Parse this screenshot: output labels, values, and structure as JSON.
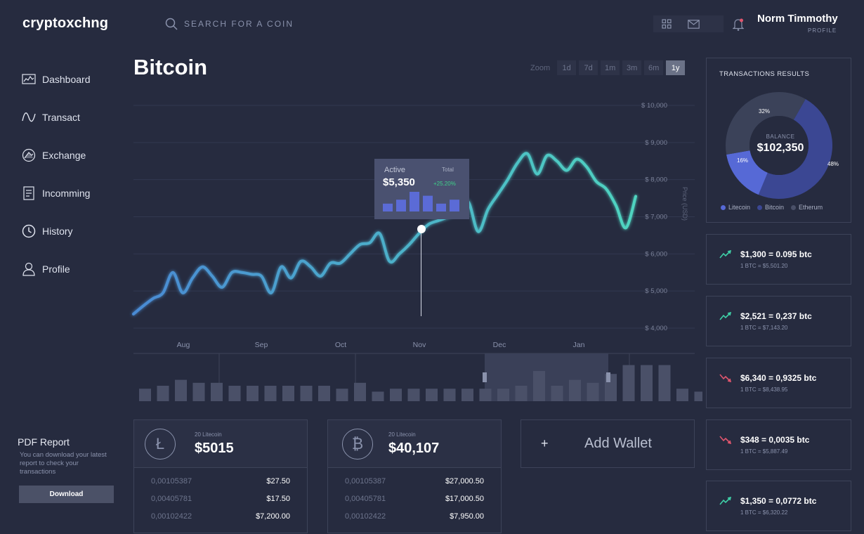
{
  "app": {
    "brand": "cryptoxchng"
  },
  "search": {
    "placeholder": "SEARCH FOR A COIN"
  },
  "header": {
    "icons": [
      "grid-icon",
      "mail-icon",
      "bell-icon"
    ],
    "user_name": "Norm Timmothy",
    "user_sub": "PROFILE"
  },
  "sidebar": {
    "items": [
      {
        "label": "Dashboard",
        "icon": "dashboard-icon"
      },
      {
        "label": "Transact",
        "icon": "wave-icon"
      },
      {
        "label": "Exchange",
        "icon": "exchange-icon"
      },
      {
        "label": "Incomming",
        "icon": "incoming-icon"
      },
      {
        "label": "History",
        "icon": "clock-icon"
      },
      {
        "label": "Profile",
        "icon": "user-icon"
      }
    ],
    "pdf": {
      "title": "PDF Report",
      "desc": "You can download your latest report to check your transactions",
      "button": "Download"
    }
  },
  "main": {
    "title": "Bitcoin",
    "zoom": {
      "label": "Zoom",
      "options": [
        "1d",
        "7d",
        "1m",
        "3m",
        "6m",
        "1y"
      ],
      "active": "1y"
    }
  },
  "colors": {
    "line_start": "#4a8ad4",
    "line_end": "#4fd4c0",
    "accent": "#5b6bd6",
    "up": "#3fd0a8",
    "down": "#e0566e"
  },
  "chart_data": {
    "type": "line",
    "ylabel": "Price (USD)",
    "ylim": [
      4000,
      10000
    ],
    "y_ticks": [
      "$ 4,000",
      "$ 5,000",
      "$ 6,000",
      "$ 7,000",
      "$ 8,000",
      "$ 9,000",
      "$ 10,000"
    ],
    "x_ticks": [
      "Aug",
      "Sep",
      "Oct",
      "Nov",
      "Dec",
      "Jan"
    ],
    "series": [
      {
        "values": [
          4380,
          4600,
          4800,
          4950,
          5500,
          4950,
          5350,
          5650,
          5400,
          5100,
          5500,
          5500,
          5450,
          5400,
          4950,
          5650,
          5350,
          5800,
          5650,
          5400,
          5750,
          5750,
          6000,
          6250,
          6300,
          6550,
          5800,
          6000,
          6250,
          6550,
          6800,
          6900,
          7000,
          7150,
          7400,
          6600,
          7200,
          7600,
          8000,
          8450,
          8700,
          8150,
          8650,
          8500,
          8250,
          8550,
          8350,
          7950,
          7750,
          7300,
          6700,
          7550
        ]
      }
    ],
    "tooltip": {
      "label": "Active",
      "total_label": "Total",
      "value": "$5,350",
      "change": "+25.20%",
      "bars": [
        2,
        3,
        5,
        4,
        2,
        3
      ]
    },
    "volume": [
      4,
      5,
      7,
      6,
      6,
      5,
      5,
      5,
      5,
      5,
      5,
      4,
      6,
      3,
      4,
      4,
      4,
      4,
      4,
      4,
      4,
      5,
      10,
      5,
      7,
      6,
      9,
      12,
      12,
      12,
      4,
      3,
      4,
      7
    ]
  },
  "wallets": [
    {
      "icon": "litecoin-icon",
      "glyph": "Ł",
      "sub": "20 Litecoin",
      "amount": "$5015",
      "rows": [
        [
          "0,00105387",
          "$27.50"
        ],
        [
          "0,00405781",
          "$17.50"
        ],
        [
          "0,00102422",
          "$7,200.00"
        ]
      ]
    },
    {
      "icon": "bitcoin-icon",
      "glyph": "₿",
      "sub": "20 Litecoin",
      "amount": "$40,107",
      "rows": [
        [
          "0,00105387",
          "$27,000.50"
        ],
        [
          "0,00405781",
          "$17,000.50"
        ],
        [
          "0,00102422",
          "$7,950.00"
        ]
      ]
    }
  ],
  "add_wallet": {
    "plus": "+",
    "label": "Add Wallet"
  },
  "transactions": {
    "title": "TRANSACTIONS RESULTS",
    "center_label": "BALANCE",
    "center_value": "$102,350",
    "slices": [
      {
        "name": "Bitcoin",
        "pct": 48,
        "label": "48%",
        "color": "#3b4793"
      },
      {
        "name": "Litecoin",
        "pct": 16,
        "label": "16%",
        "color": "#5669d6"
      },
      {
        "name": "Etherum",
        "pct": 32,
        "label": "32%",
        "color": "#3b4259"
      }
    ],
    "legend": [
      {
        "name": "Litecoin",
        "color": "#5669d6"
      },
      {
        "name": "Bitcoin",
        "color": "#3b4793"
      },
      {
        "name": "Etherum",
        "color": "#4a5068"
      }
    ]
  },
  "rates": [
    {
      "trend": "up",
      "main": "$1,300 = 0.095 btc",
      "sub": "1 BTC = $5,501.20"
    },
    {
      "trend": "up",
      "main": "$2,521 = 0,237 btc",
      "sub": "1 BTC = $7,143.20"
    },
    {
      "trend": "down",
      "main": "$6,340 = 0,9325 btc",
      "sub": "1 BTC = $8,438.95"
    },
    {
      "trend": "down",
      "main": "$348 = 0,0035 btc",
      "sub": "1 BTC = $5,887.49"
    },
    {
      "trend": "up",
      "main": "$1,350 = 0,0772 btc",
      "sub": "1 BTC = $6,320.22"
    }
  ]
}
